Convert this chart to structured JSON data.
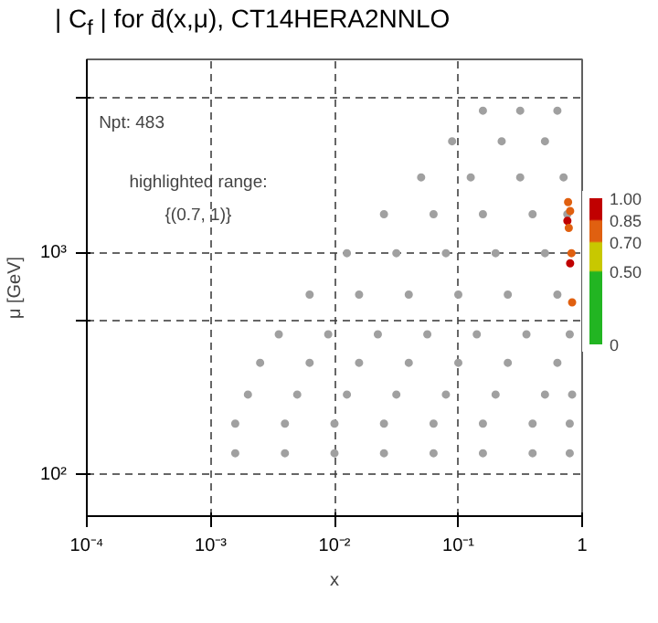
{
  "chart_data": {
    "type": "scatter",
    "title": "| C$_{f}$ | for d̄(x,μ), CT14HERA2NNLO",
    "xlabel": "x",
    "ylabel": "μ [GeV]",
    "log": "xy",
    "grid": true,
    "marker": "circle",
    "xlim": [
      0.0001,
      1
    ],
    "ylim": [
      65,
      7500
    ],
    "xticks": [
      {
        "value": 0.0001,
        "label": "10⁻⁴"
      },
      {
        "value": 0.001,
        "label": "10⁻³"
      },
      {
        "value": 0.01,
        "label": "10⁻²"
      },
      {
        "value": 0.1,
        "label": "10⁻¹"
      },
      1
    ],
    "yticks": [
      {
        "value": 100,
        "label": "10²"
      },
      {
        "value": 500,
        "label": null
      },
      {
        "value": 1000,
        "label": "10³"
      },
      {
        "value": 5000,
        "label": null
      }
    ],
    "clim": [
      0,
      1
    ],
    "cticks": [
      0,
      {
        "value": 0.5,
        "label": "0.50"
      },
      {
        "value": 0.7,
        "label": "0.70"
      },
      {
        "value": 0.85,
        "label": "0.85"
      },
      {
        "value": 1,
        "label": "1.00"
      }
    ],
    "annotations": [
      "Npt: 483",
      "highlighted range:\n{(0.7, 1)}"
    ],
    "series": [
      {
        "color": "#a0a0a0",
        "x": [
          0.00158,
          0.00398,
          0.01,
          0.0251,
          0.0631,
          0.158,
          0.398,
          0.794,
          0.00158,
          0.00398,
          0.01,
          0.0251,
          0.0631,
          0.158,
          0.398,
          0.794,
          0.002,
          0.005,
          0.0126,
          0.0316,
          0.0794,
          0.2,
          0.501,
          0.83,
          0.00251,
          0.0063,
          0.0158,
          0.0398,
          0.1,
          0.251,
          0.631,
          0.00355,
          0.0089,
          0.0224,
          0.0562,
          0.141,
          0.355,
          0.794,
          0.0063,
          0.0158,
          0.0398,
          0.1,
          0.251,
          0.631,
          0.0126,
          0.0316,
          0.0794,
          0.2,
          0.501,
          0.0251,
          0.0631,
          0.158,
          0.398,
          0.759,
          0.0501,
          0.126,
          0.316,
          0.708,
          0.0891,
          0.224,
          0.501,
          0.158,
          0.316,
          0.631
        ],
        "values": [
          125,
          125,
          125,
          125,
          125,
          125,
          125,
          125,
          170,
          170,
          170,
          170,
          170,
          170,
          170,
          170,
          230,
          230,
          230,
          230,
          230,
          230,
          230,
          230,
          320,
          320,
          320,
          320,
          320,
          320,
          320,
          430,
          430,
          430,
          430,
          430,
          430,
          430,
          650,
          650,
          650,
          650,
          650,
          650,
          1000,
          1000,
          1000,
          1000,
          1000,
          1500,
          1500,
          1500,
          1500,
          1500,
          2200,
          2200,
          2200,
          2200,
          3200,
          3200,
          3200,
          4400,
          4400,
          4400
        ]
      },
      {
        "x": [
          0.77,
          0.8,
          0.76,
          0.78,
          0.82,
          0.8,
          0.83
        ],
        "values": [
          1700,
          1550,
          1400,
          1300,
          1000,
          900,
          600
        ],
        "colors": [
          "#e06010",
          "#e06010",
          "#c00000",
          "#e06010",
          "#e06010",
          "#c00000",
          "#e06010"
        ]
      }
    ]
  }
}
